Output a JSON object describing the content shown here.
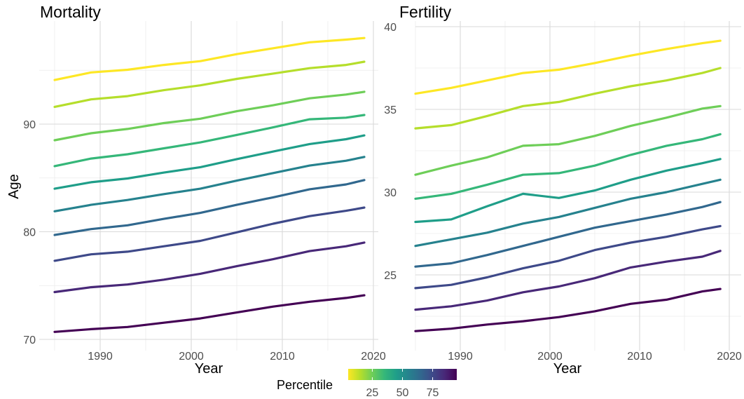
{
  "chart_data": [
    {
      "type": "line",
      "title": "Mortality",
      "xlabel": "Year",
      "ylabel": "Age",
      "xlim": [
        1985,
        2020
      ],
      "ylim": [
        70,
        98
      ],
      "xticks": [
        "1990",
        "2000",
        "2010",
        "2020"
      ],
      "yticks": [
        "70",
        "80",
        "90"
      ],
      "grid": true,
      "x": [
        1985,
        1989,
        1993,
        1997,
        2001,
        2005,
        2009,
        2013,
        2017,
        2019
      ],
      "series": [
        {
          "percentile": 5,
          "color": "#440154",
          "values": [
            70.7,
            70.95,
            71.15,
            71.55,
            71.95,
            72.5,
            73.05,
            73.5,
            73.85,
            74.1
          ]
        },
        {
          "percentile": 15,
          "color": "#482878",
          "values": [
            74.4,
            74.85,
            75.1,
            75.55,
            76.1,
            76.8,
            77.45,
            78.2,
            78.65,
            79.0
          ]
        },
        {
          "percentile": 25,
          "color": "#3e4989",
          "values": [
            77.3,
            77.9,
            78.15,
            78.65,
            79.15,
            79.95,
            80.75,
            81.45,
            81.95,
            82.25
          ]
        },
        {
          "percentile": 35,
          "color": "#31688e",
          "values": [
            79.7,
            80.25,
            80.6,
            81.2,
            81.75,
            82.5,
            83.2,
            83.95,
            84.4,
            84.8
          ]
        },
        {
          "percentile": 45,
          "color": "#26828e",
          "values": [
            81.9,
            82.5,
            82.95,
            83.5,
            84.0,
            84.75,
            85.45,
            86.15,
            86.6,
            86.95
          ]
        },
        {
          "percentile": 55,
          "color": "#1f9e89",
          "values": [
            84.0,
            84.6,
            84.95,
            85.5,
            86.0,
            86.75,
            87.45,
            88.15,
            88.6,
            88.95
          ]
        },
        {
          "percentile": 65,
          "color": "#35b779",
          "values": [
            86.1,
            86.8,
            87.2,
            87.75,
            88.3,
            89.0,
            89.7,
            90.45,
            90.6,
            90.85
          ]
        },
        {
          "percentile": 75,
          "color": "#6ece58",
          "values": [
            88.5,
            89.15,
            89.55,
            90.1,
            90.5,
            91.2,
            91.75,
            92.4,
            92.75,
            93.0
          ]
        },
        {
          "percentile": 85,
          "color": "#b5de2b",
          "values": [
            91.6,
            92.3,
            92.6,
            93.15,
            93.6,
            94.2,
            94.7,
            95.2,
            95.5,
            95.8
          ]
        },
        {
          "percentile": 95,
          "color": "#fde725",
          "values": [
            94.1,
            94.8,
            95.05,
            95.5,
            95.85,
            96.5,
            97.05,
            97.6,
            97.85,
            98.0
          ]
        }
      ]
    },
    {
      "type": "line",
      "title": "Fertility",
      "xlabel": "Year",
      "ylabel": "",
      "xlim": [
        1985,
        2020
      ],
      "ylim": [
        21.5,
        40
      ],
      "xticks": [
        "1990",
        "2000",
        "2010",
        "2020"
      ],
      "yticks": [
        "25",
        "30",
        "35",
        "40"
      ],
      "grid": true,
      "x": [
        1985,
        1989,
        1993,
        1997,
        2001,
        2005,
        2009,
        2013,
        2017,
        2019
      ],
      "series": [
        {
          "percentile": 5,
          "color": "#440154",
          "values": [
            21.6,
            21.75,
            22.0,
            22.2,
            22.45,
            22.8,
            23.25,
            23.5,
            24.0,
            24.15
          ]
        },
        {
          "percentile": 15,
          "color": "#482878",
          "values": [
            22.9,
            23.1,
            23.45,
            23.95,
            24.3,
            24.8,
            25.45,
            25.8,
            26.1,
            26.45
          ]
        },
        {
          "percentile": 25,
          "color": "#3e4989",
          "values": [
            24.2,
            24.4,
            24.85,
            25.4,
            25.85,
            26.5,
            26.95,
            27.3,
            27.75,
            27.95
          ]
        },
        {
          "percentile": 35,
          "color": "#31688e",
          "values": [
            25.5,
            25.7,
            26.2,
            26.75,
            27.3,
            27.85,
            28.25,
            28.65,
            29.1,
            29.4
          ]
        },
        {
          "percentile": 45,
          "color": "#26828e",
          "values": [
            26.75,
            27.15,
            27.55,
            28.1,
            28.5,
            29.05,
            29.6,
            30.0,
            30.5,
            30.75
          ]
        },
        {
          "percentile": 55,
          "color": "#1f9e89",
          "values": [
            28.2,
            28.35,
            29.15,
            29.9,
            29.65,
            30.1,
            30.75,
            31.3,
            31.75,
            32.0
          ]
        },
        {
          "percentile": 65,
          "color": "#35b779",
          "values": [
            29.6,
            29.9,
            30.45,
            31.05,
            31.15,
            31.6,
            32.25,
            32.8,
            33.2,
            33.5
          ]
        },
        {
          "percentile": 75,
          "color": "#6ece58",
          "values": [
            31.05,
            31.6,
            32.1,
            32.8,
            32.9,
            33.4,
            34.0,
            34.5,
            35.05,
            35.2
          ]
        },
        {
          "percentile": 85,
          "color": "#b5de2b",
          "values": [
            33.85,
            34.05,
            34.6,
            35.2,
            35.45,
            35.95,
            36.4,
            36.75,
            37.2,
            37.5
          ]
        },
        {
          "percentile": 95,
          "color": "#fde725",
          "values": [
            35.95,
            36.3,
            36.75,
            37.2,
            37.4,
            37.8,
            38.25,
            38.65,
            39.0,
            39.15
          ]
        }
      ]
    }
  ],
  "legend": {
    "title": "Percentile",
    "ticks": [
      "25",
      "50",
      "75"
    ],
    "placement": "bottom",
    "gradient": [
      "#fde725",
      "#b5de2b",
      "#6ece58",
      "#35b779",
      "#1f9e89",
      "#26828e",
      "#31688e",
      "#3e4989",
      "#482878",
      "#440154"
    ]
  }
}
